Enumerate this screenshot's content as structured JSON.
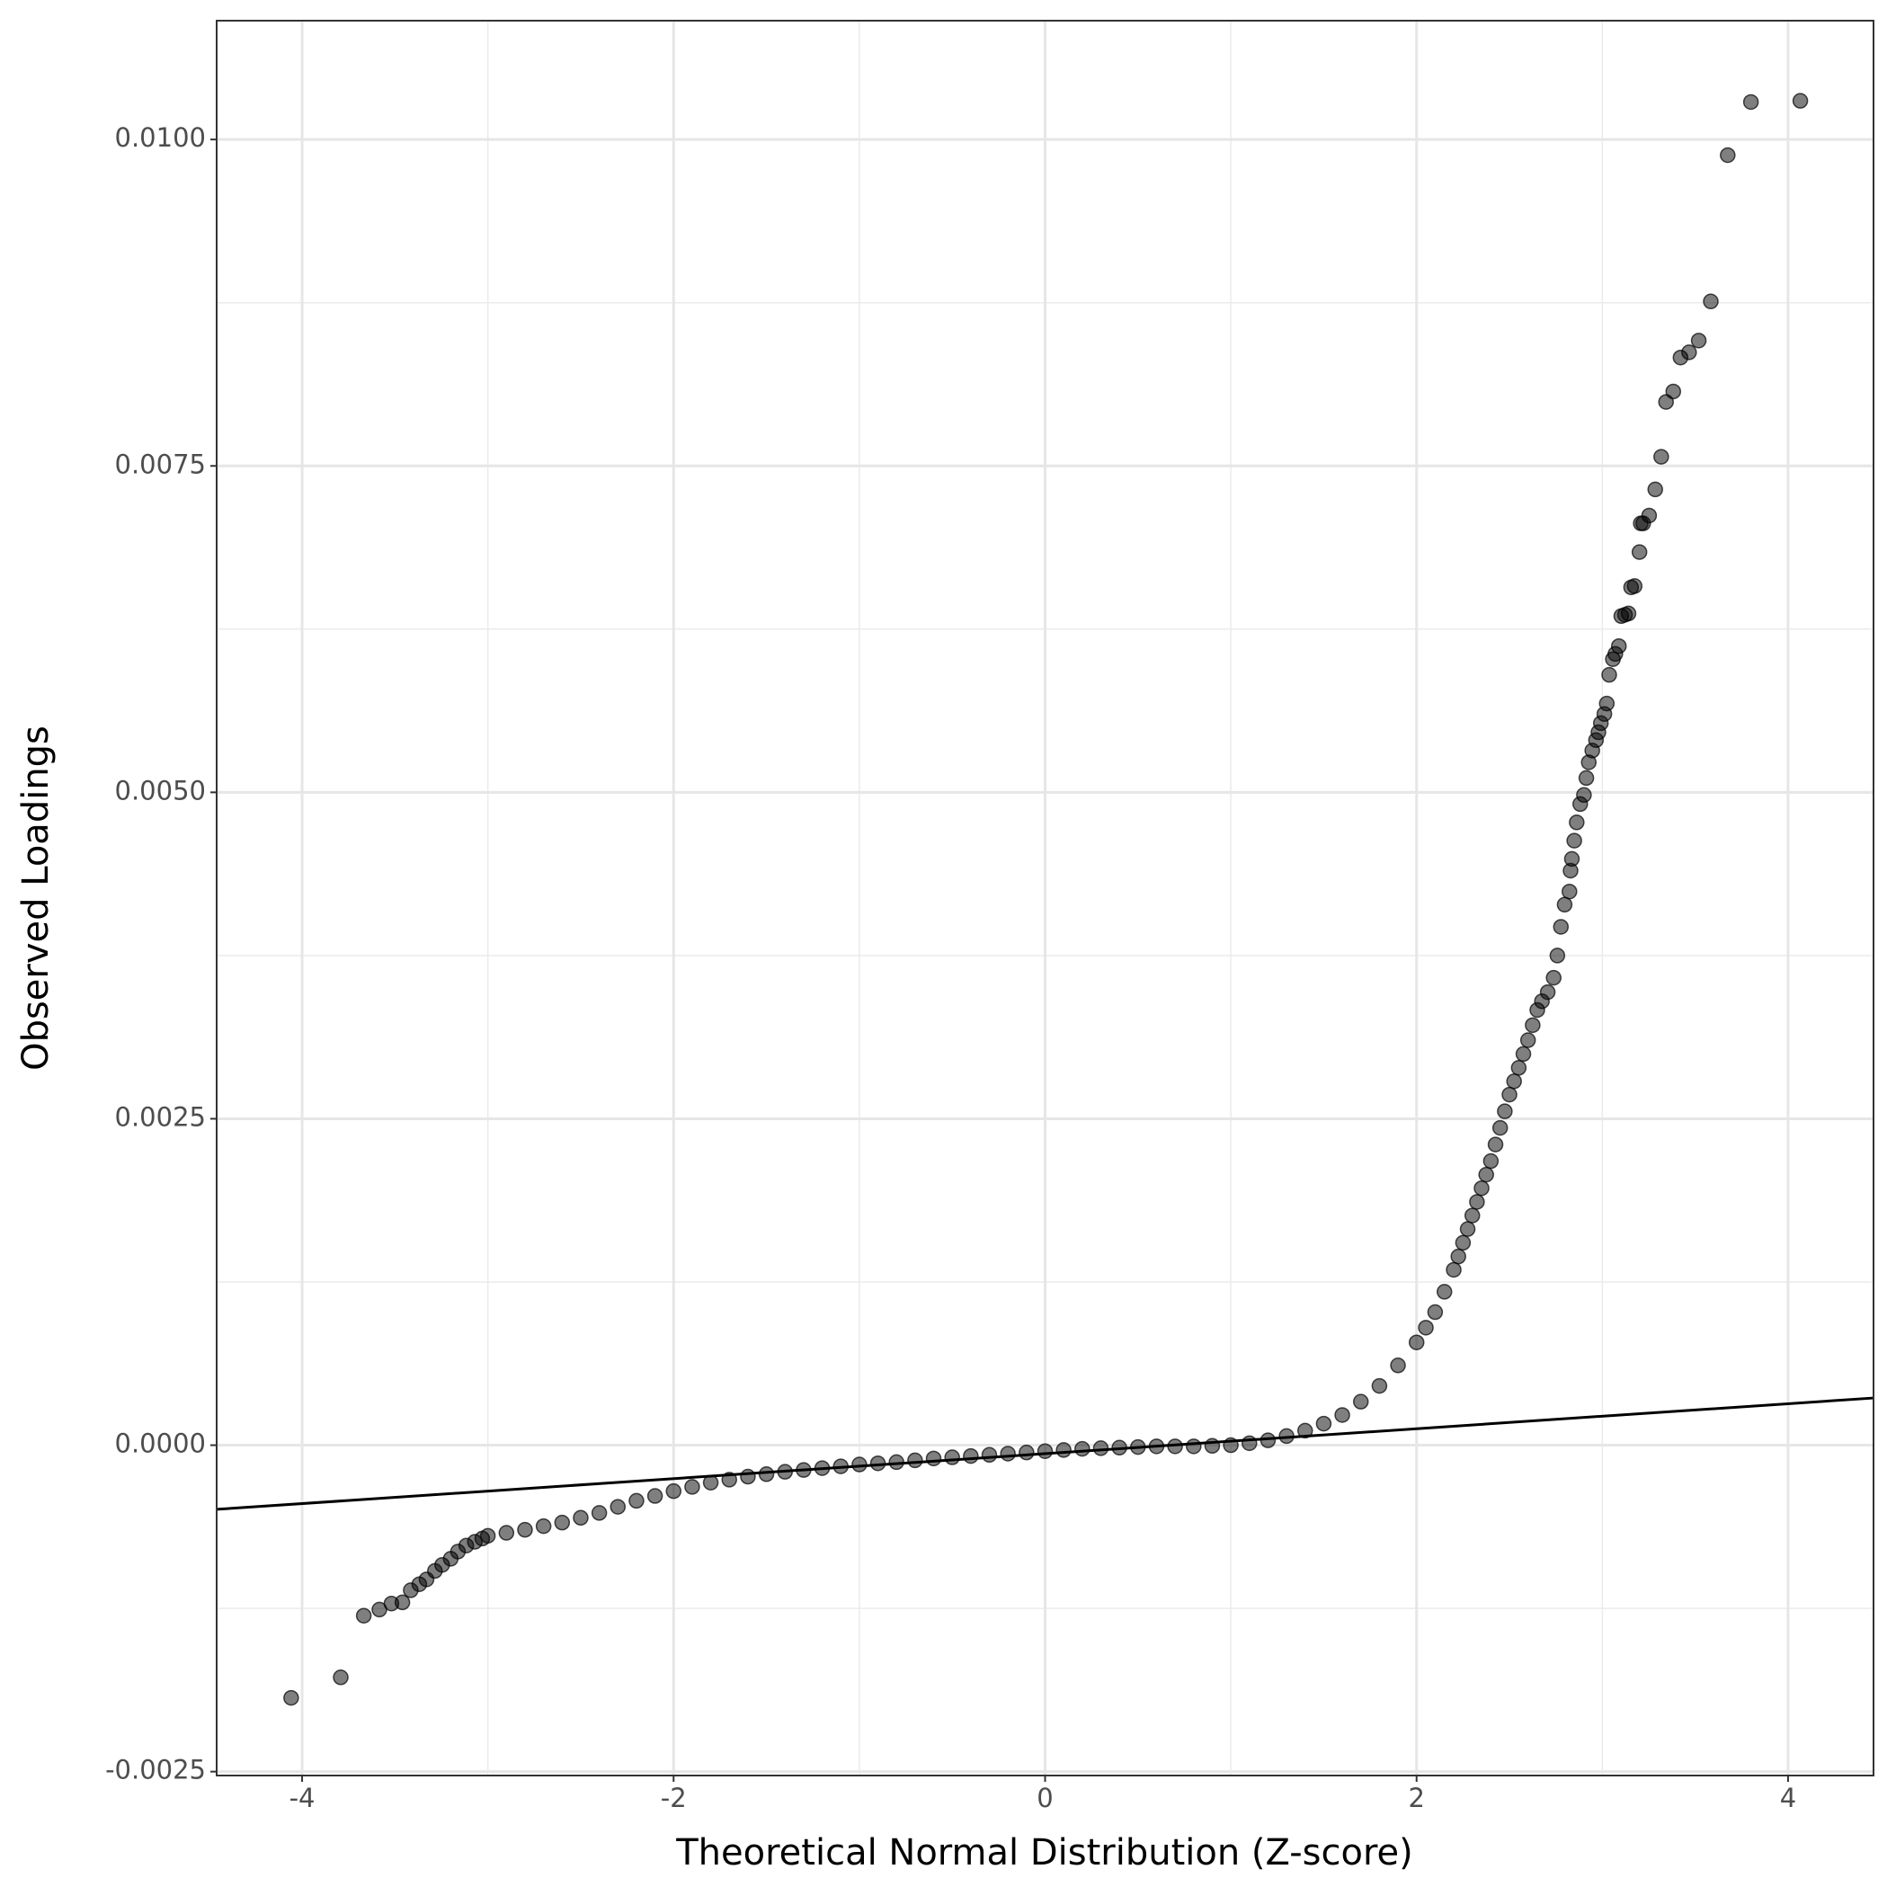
{
  "chart_data": {
    "type": "scatter",
    "x_label": "Theoretical Normal Distribution (Z-score)",
    "y_label": "Observed Loadings",
    "xlim": [
      -4.46,
      4.46
    ],
    "ylim": [
      -0.00253,
      0.01091
    ],
    "xticks": [
      -4,
      -2,
      0,
      2,
      4
    ],
    "yticks": [
      {
        "value": -0.0025,
        "label": "-0.0025"
      },
      {
        "value": 0,
        "label": "0.0000"
      },
      {
        "value": 0.0025,
        "label": "0.0025"
      },
      {
        "value": 0.005,
        "label": "0.0050"
      },
      {
        "value": 0.0075,
        "label": "0.0075"
      },
      {
        "value": 0.01,
        "label": "0.0100"
      }
    ],
    "x_minor_grid": [
      -3,
      -1,
      1,
      3
    ],
    "y_minor_grid": [
      -0.00125,
      0.00125,
      0.00375,
      0.00625,
      0.00875
    ],
    "grid": true,
    "color": "#000000",
    "reference_line": {
      "slope": 9.56e-05,
      "intercept": -6.5e-05
    },
    "x": [
      -4.059,
      -3.792,
      -3.668,
      -3.584,
      -3.519,
      -3.46,
      -3.415,
      -3.369,
      -3.33,
      -3.285,
      -3.246,
      -3.2,
      -3.161,
      -3.116,
      -3.07,
      -3.03,
      -3.0,
      -2.9,
      -2.8,
      -2.7,
      -2.6,
      -2.5,
      -2.4,
      -2.3,
      -2.2,
      -2.1,
      -2.0,
      -1.9,
      -1.8,
      -1.7,
      -1.6,
      -1.5,
      -1.4,
      -1.3,
      -1.2,
      -1.1,
      -1.0,
      -0.9,
      -0.8,
      -0.7,
      -0.6,
      -0.5,
      -0.4,
      -0.3,
      -0.2,
      -0.1,
      0.0,
      0.1,
      0.2,
      0.3,
      0.4,
      0.5,
      0.6,
      0.7,
      0.8,
      0.9,
      1.0,
      1.1,
      1.2,
      1.3,
      1.4,
      1.5,
      1.6,
      1.7,
      1.8,
      1.9,
      2.0,
      2.05,
      2.1,
      2.15,
      2.2,
      2.225,
      2.25,
      2.275,
      2.3,
      2.325,
      2.35,
      2.375,
      2.4,
      2.425,
      2.45,
      2.475,
      2.5,
      2.525,
      2.55,
      2.575,
      2.6,
      2.625,
      2.65,
      2.675,
      2.706,
      2.738,
      2.758,
      2.777,
      2.797,
      2.823,
      2.829,
      2.836,
      2.849,
      2.862,
      2.881,
      2.901,
      2.914,
      2.927,
      2.946,
      2.966,
      2.979,
      2.992,
      3.011,
      3.024,
      3.037,
      3.057,
      3.07,
      3.089,
      3.102,
      3.122,
      3.141,
      3.155,
      3.174,
      3.2,
      3.207,
      3.22,
      3.252,
      3.285,
      3.317,
      3.343,
      3.382,
      3.421,
      3.467,
      3.519,
      3.584,
      3.675,
      3.8,
      4.066
    ],
    "values": [
      -0.001935,
      -0.001778,
      -0.001306,
      -0.001259,
      -0.001213,
      -0.001204,
      -0.001111,
      -0.001065,
      -0.001028,
      -0.000963,
      -0.000917,
      -0.00087,
      -0.000815,
      -0.000769,
      -0.00074,
      -0.000715,
      -0.000694,
      -0.000671,
      -0.000648,
      -0.00062,
      -0.000593,
      -0.000556,
      -0.000519,
      -0.000472,
      -0.000426,
      -0.000389,
      -0.000352,
      -0.000319,
      -0.000287,
      -0.000264,
      -0.000241,
      -0.000222,
      -0.000204,
      -0.00019,
      -0.000176,
      -0.000162,
      -0.000148,
      -0.000139,
      -0.00013,
      -0.000116,
      -0.000102,
      -9.3e-05,
      -8.3e-05,
      -7.4e-05,
      -6.5e-05,
      -5.6e-05,
      -4.6e-05,
      -3.7e-05,
      -2.8e-05,
      -2.3e-05,
      -1.9e-05,
      -1.4e-05,
      -9e-06,
      -9e-06,
      -9e-06,
      -5e-06,
      0.0,
      1.5e-05,
      3.7e-05,
      7e-05,
      0.000111,
      0.000165,
      0.000231,
      0.000333,
      0.000454,
      0.000611,
      0.000787,
      0.0009,
      0.001019,
      0.001175,
      0.001343,
      0.001445,
      0.00155,
      0.001655,
      0.001759,
      0.001863,
      0.001968,
      0.002072,
      0.002176,
      0.002303,
      0.00243,
      0.002557,
      0.002685,
      0.002787,
      0.00289,
      0.002996,
      0.003102,
      0.003217,
      0.003333,
      0.0034,
      0.00347,
      0.00358,
      0.00375,
      0.00397,
      0.00414,
      0.00424,
      0.0044,
      0.00449,
      0.00463,
      0.00477,
      0.00491,
      0.00498,
      0.00511,
      0.00523,
      0.00532,
      0.0054,
      0.00546,
      0.00553,
      0.0056,
      0.00568,
      0.0059,
      0.00602,
      0.00606,
      0.00612,
      0.00635,
      0.00636,
      0.00637,
      0.00657,
      0.00658,
      0.00684,
      0.00706,
      0.00706,
      0.00712,
      0.00732,
      0.00757,
      0.00799,
      0.00807,
      0.00833,
      0.00837,
      0.00846,
      0.00876,
      0.00988,
      0.010287,
      0.010296
    ]
  }
}
